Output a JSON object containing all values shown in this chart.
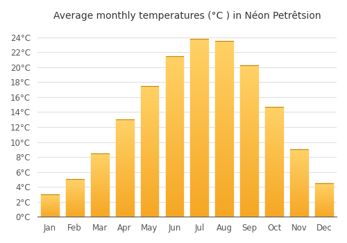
{
  "months": [
    "Jan",
    "Feb",
    "Mar",
    "Apr",
    "May",
    "Jun",
    "Jul",
    "Aug",
    "Sep",
    "Oct",
    "Nov",
    "Dec"
  ],
  "temperatures": [
    3,
    5,
    8.5,
    13,
    17.5,
    21.5,
    23.8,
    23.5,
    20.3,
    14.7,
    9,
    4.5
  ],
  "bar_color_bottom": "#F5A623",
  "bar_color_top": "#FFD166",
  "title": "Average monthly temperatures (°C ) in Néon Petrêtsion",
  "ylabel_ticks": [
    0,
    2,
    4,
    6,
    8,
    10,
    12,
    14,
    16,
    18,
    20,
    22,
    24
  ],
  "ylim": [
    0,
    25.5
  ],
  "background_color": "#ffffff",
  "grid_color": "#e0e0e0",
  "title_fontsize": 10,
  "tick_fontsize": 8.5
}
